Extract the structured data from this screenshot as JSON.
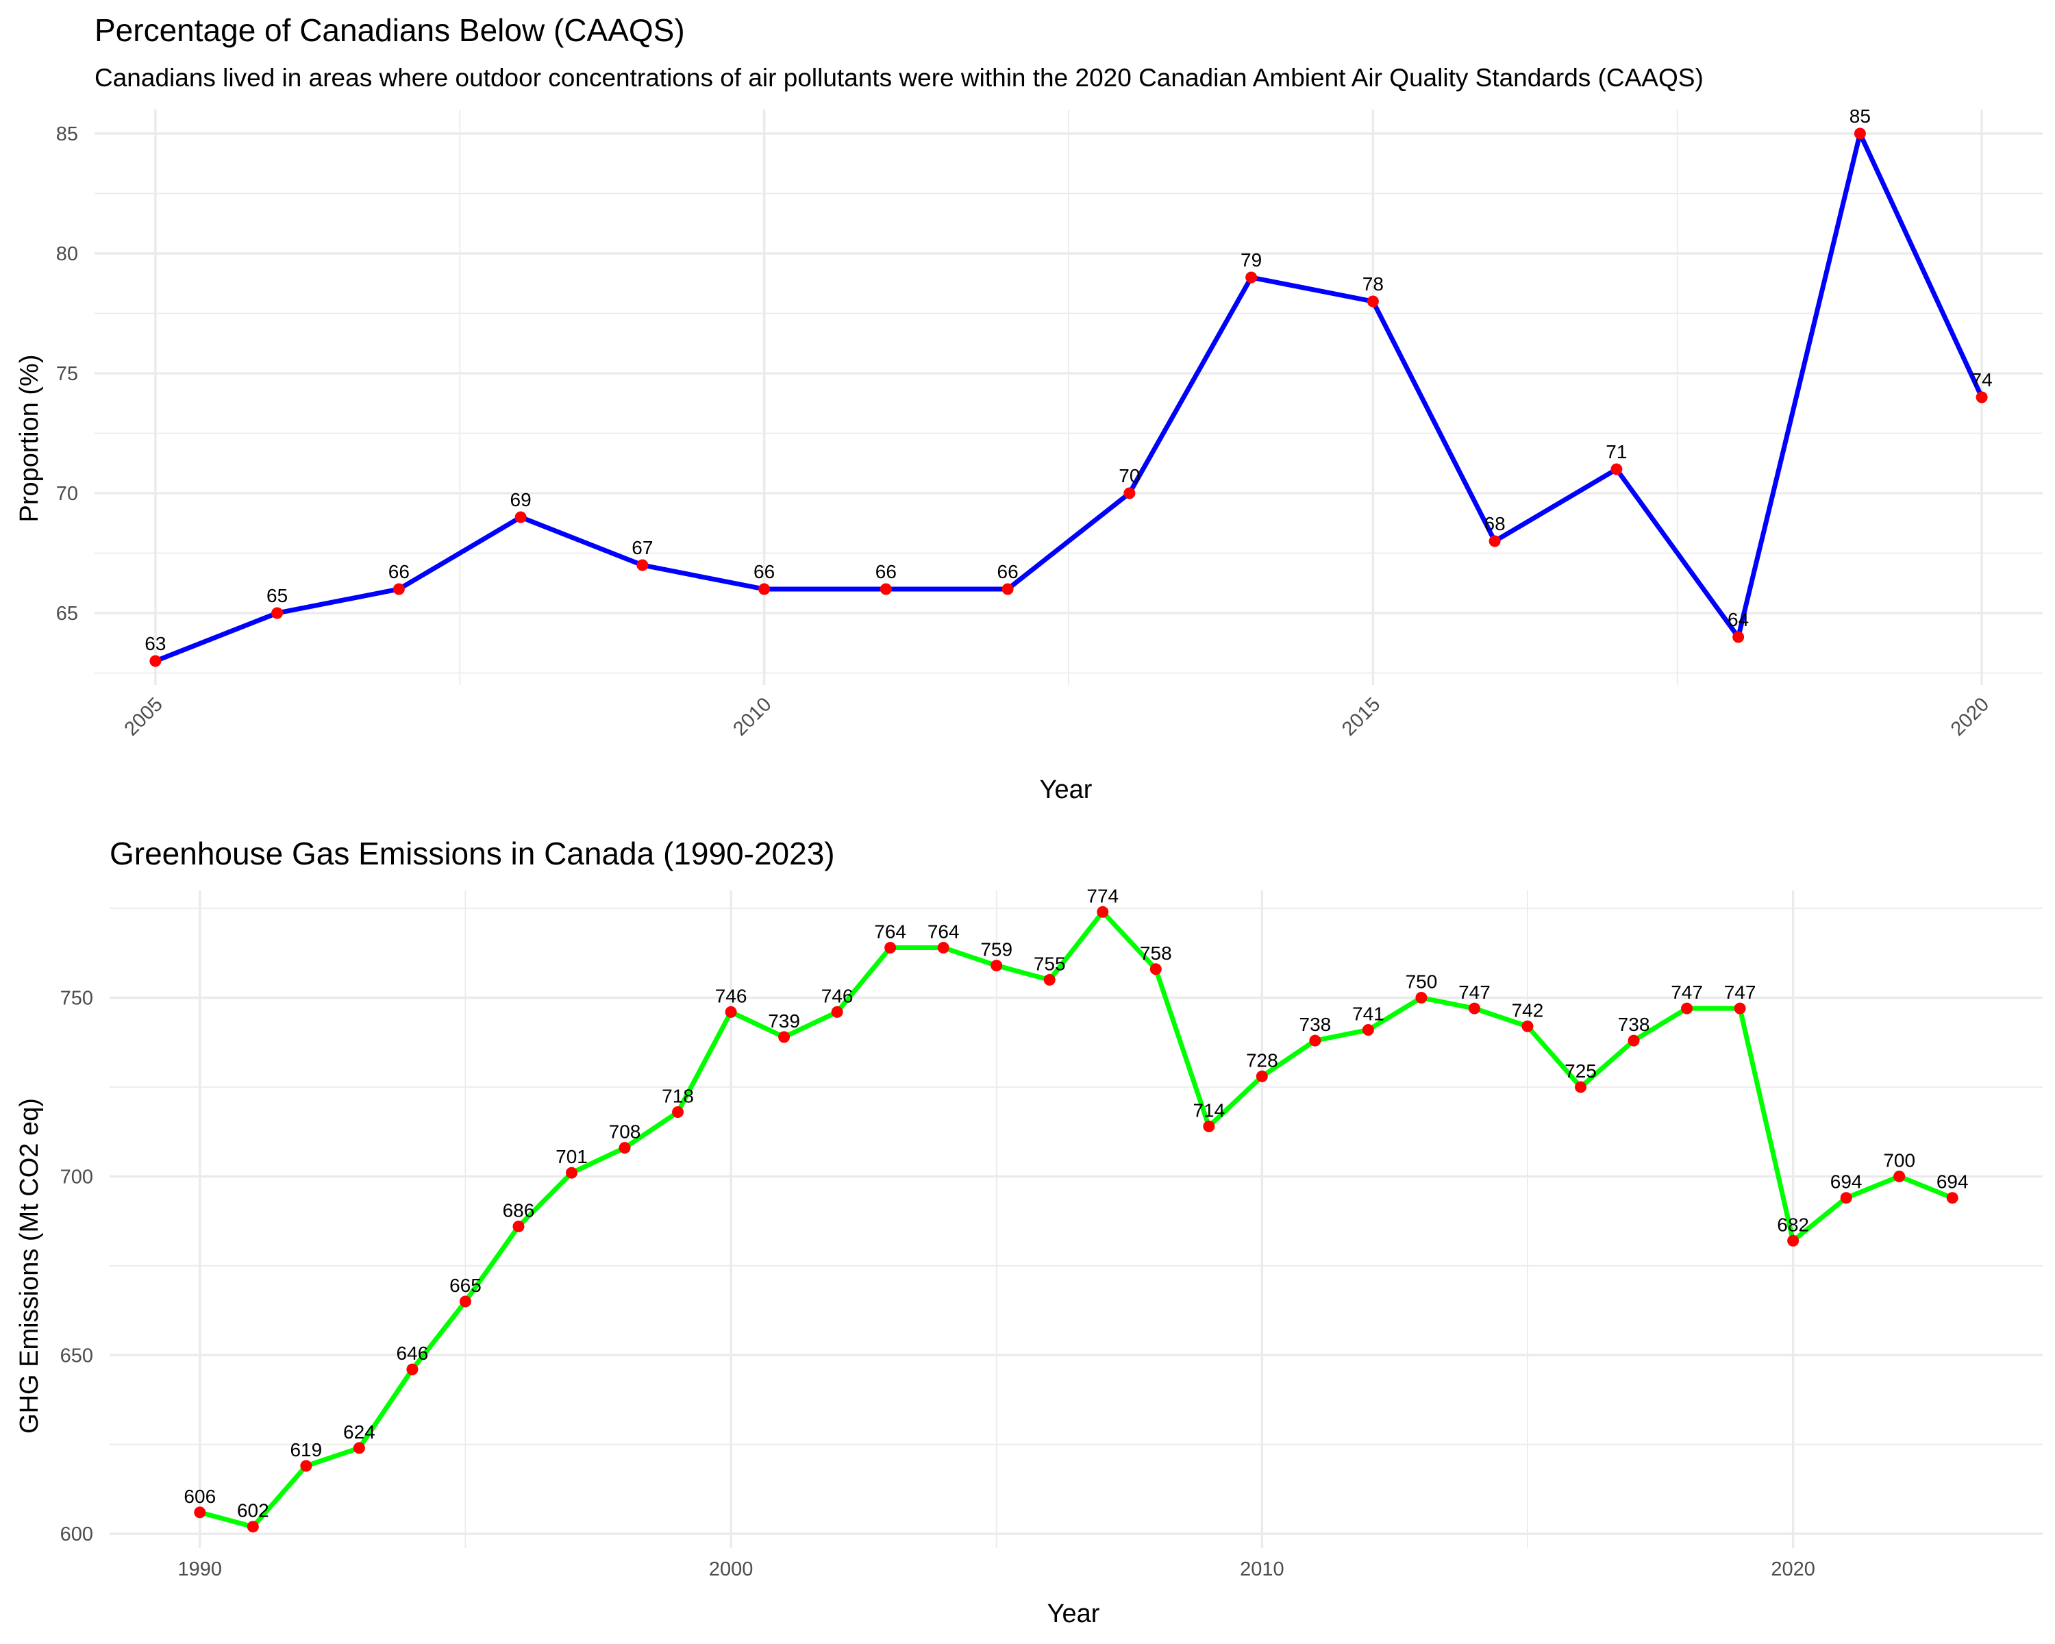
{
  "chart_data": [
    {
      "type": "line",
      "title": "Percentage of Canadians Below (CAAQS)",
      "subtitle": "Canadians lived in areas where outdoor concentrations of air pollutants were within the 2020 Canadian Ambient Air Quality Standards (CAAQS)",
      "xlabel": "Year",
      "ylabel": "Proportion (%)",
      "x": [
        2005,
        2006,
        2007,
        2008,
        2009,
        2010,
        2011,
        2012,
        2013,
        2014,
        2015,
        2016,
        2017,
        2018,
        2019,
        2020
      ],
      "series": [
        {
          "values": [
            63,
            65,
            66,
            69,
            67,
            66,
            66,
            66,
            70,
            79,
            78,
            68,
            71,
            64,
            85,
            74
          ]
        }
      ],
      "xlim": [
        2004.5,
        2020.5
      ],
      "ylim": [
        62,
        86
      ],
      "x_ticks": [
        "2005",
        "2010",
        "2015",
        "2020"
      ],
      "y_ticks": [
        "65",
        "70",
        "75",
        "80",
        "85"
      ],
      "x_tick_rotation": 45,
      "line_color": "#0000ff",
      "point_color": "#ff0000",
      "grid": true,
      "legend": "none"
    },
    {
      "type": "line",
      "title": "Greenhouse Gas Emissions in Canada (1990-2023)",
      "xlabel": "Year",
      "ylabel": "GHG Emissions (Mt CO2 eq)",
      "x": [
        1990,
        1991,
        1992,
        1993,
        1994,
        1995,
        1996,
        1997,
        1998,
        1999,
        2000,
        2001,
        2002,
        2003,
        2004,
        2005,
        2006,
        2007,
        2008,
        2009,
        2010,
        2011,
        2012,
        2013,
        2014,
        2015,
        2016,
        2017,
        2018,
        2019,
        2020,
        2021,
        2022,
        2023
      ],
      "series": [
        {
          "values": [
            606,
            602,
            619,
            624,
            646,
            665,
            686,
            701,
            708,
            718,
            746,
            739,
            746,
            764,
            764,
            759,
            755,
            774,
            758,
            714,
            728,
            738,
            741,
            750,
            747,
            742,
            725,
            738,
            747,
            747,
            682,
            694,
            700,
            694
          ]
        }
      ],
      "xlim": [
        1988.3,
        2024.7
      ],
      "ylim": [
        596,
        780
      ],
      "x_ticks": [
        "1990",
        "2000",
        "2010",
        "2020"
      ],
      "y_ticks": [
        "600",
        "650",
        "700",
        "750"
      ],
      "line_color": "#00ff00",
      "point_color": "#ff0000",
      "grid": true,
      "legend": "none"
    }
  ]
}
